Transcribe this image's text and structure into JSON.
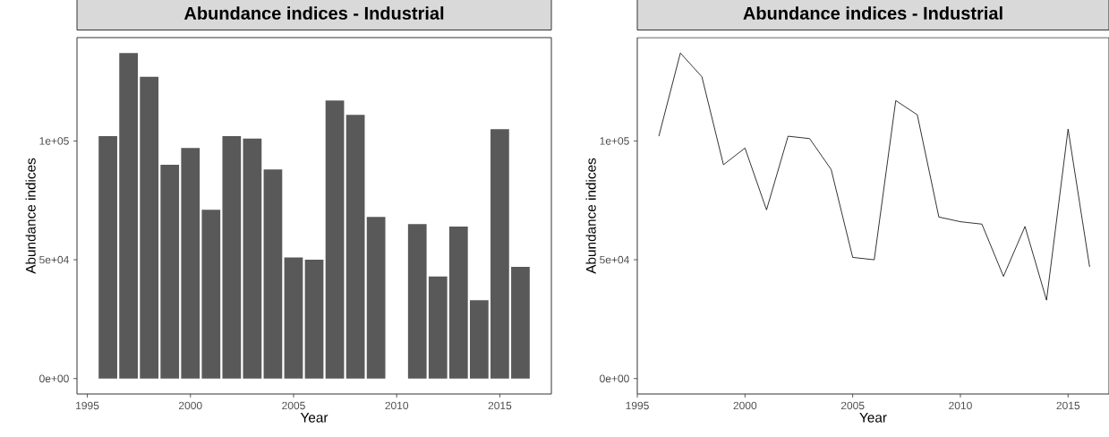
{
  "chart_data": [
    {
      "type": "bar",
      "title": "Abundance indices - Industrial",
      "xlabel": "Year",
      "ylabel": "Abundance indices",
      "color": "#595959",
      "x": [
        1996,
        1997,
        1998,
        1999,
        2000,
        2001,
        2002,
        2003,
        2004,
        2005,
        2006,
        2007,
        2008,
        2009,
        2011,
        2012,
        2013,
        2014,
        2015,
        2016
      ],
      "values": [
        102000,
        137000,
        127000,
        90000,
        97000,
        71000,
        102000,
        101000,
        88000,
        51000,
        50000,
        117000,
        111000,
        68000,
        65000,
        43000,
        64000,
        33000,
        105000,
        47000
      ],
      "xlim": [
        1994.5,
        2017.5
      ],
      "xticks": [
        1995,
        2000,
        2005,
        2010,
        2015
      ],
      "ylim": [
        -6500,
        143500
      ],
      "yticks": [
        {
          "value": 0,
          "label": "0e+00"
        },
        {
          "value": 50000,
          "label": "5e+04"
        },
        {
          "value": 100000,
          "label": "1e+05"
        }
      ]
    },
    {
      "type": "line",
      "title": "Abundance indices - Industrial",
      "xlabel": "Year",
      "ylabel": "Abundance indices",
      "color": "#000000",
      "x": [
        1996,
        1997,
        1998,
        1999,
        2000,
        2001,
        2002,
        2003,
        2004,
        2005,
        2006,
        2007,
        2008,
        2009,
        2010,
        2011,
        2012,
        2013,
        2014,
        2015,
        2016
      ],
      "values": [
        102000,
        137000,
        127000,
        90000,
        97000,
        71000,
        102000,
        101000,
        88000,
        51000,
        50000,
        117000,
        111000,
        68000,
        66000,
        65000,
        43000,
        64000,
        33000,
        105000,
        47000
      ],
      "xlim": [
        1995,
        2016.9
      ],
      "xticks": [
        1995,
        2000,
        2005,
        2010,
        2015
      ],
      "ylim": [
        -6500,
        143500
      ],
      "yticks": [
        {
          "value": 0,
          "label": "0e+00"
        },
        {
          "value": 50000,
          "label": "5e+04"
        },
        {
          "value": 100000,
          "label": "1e+05"
        }
      ]
    }
  ]
}
